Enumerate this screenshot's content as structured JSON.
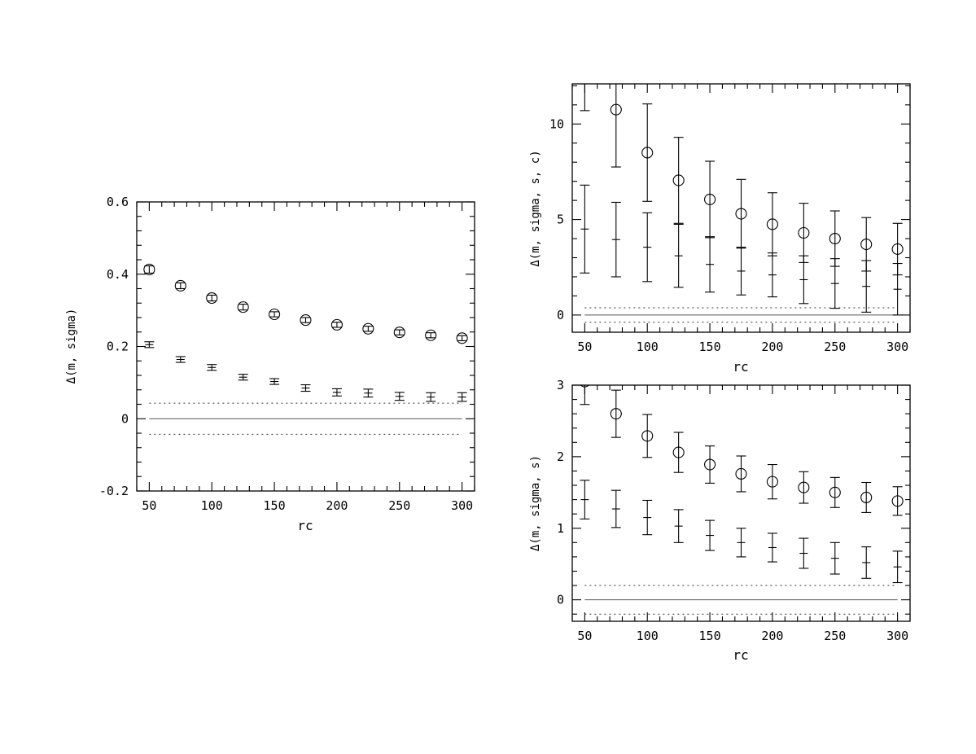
{
  "chart_data": [
    {
      "id": "left",
      "type": "scatter",
      "xlabel": "rc",
      "ylabel": "Δ(m, sigma)",
      "xlim": [
        40,
        310
      ],
      "ylim": [
        -0.2,
        0.6
      ],
      "xticks": [
        50,
        100,
        150,
        200,
        250,
        300
      ],
      "yticks": [
        -0.2,
        0,
        0.2,
        0.4,
        0.6
      ],
      "ytick_labels": [
        "-0.2",
        "0",
        "0.2",
        "0.4",
        "0.6"
      ],
      "grid": false,
      "x": [
        50,
        75,
        100,
        125,
        150,
        175,
        200,
        225,
        250,
        275,
        300
      ],
      "series": [
        {
          "marker": "circle",
          "values": [
            0.413,
            0.368,
            0.334,
            0.309,
            0.289,
            0.273,
            0.26,
            0.249,
            0.239,
            0.231,
            0.223
          ],
          "err": [
            0.01,
            0.008,
            0.008,
            0.008,
            0.007,
            0.007,
            0.007,
            0.007,
            0.007,
            0.007,
            0.007
          ]
        },
        {
          "marker": "plus",
          "values": [
            0.205,
            0.164,
            0.142,
            0.115,
            0.103,
            0.085,
            0.073,
            0.071,
            0.062,
            0.06,
            0.06
          ],
          "err": [
            0.008,
            0.008,
            0.008,
            0.008,
            0.008,
            0.009,
            0.01,
            0.011,
            0.011,
            0.012,
            0.012
          ]
        }
      ],
      "hlines": [
        {
          "y": 0,
          "style": "solid"
        },
        {
          "y": 0.043,
          "style": "dotted"
        },
        {
          "y": -0.043,
          "style": "dotted"
        }
      ]
    },
    {
      "id": "top-right",
      "type": "scatter",
      "xlabel": "rc",
      "ylabel": "Δ(m, sigma, s, c)",
      "xlim": [
        40,
        310
      ],
      "ylim": [
        -0.9,
        12.1
      ],
      "xticks": [
        50,
        100,
        150,
        200,
        250,
        300
      ],
      "yticks": [
        0,
        5,
        10
      ],
      "ytick_labels": [
        "0",
        "5",
        "10"
      ],
      "grid": false,
      "x": [
        50,
        75,
        100,
        125,
        150,
        175,
        200,
        225,
        250,
        275,
        300
      ],
      "series": [
        {
          "marker": "circle",
          "values": [
            13.0,
            10.75,
            8.5,
            7.05,
            6.05,
            5.3,
            4.75,
            4.3,
            4.0,
            3.7,
            3.45
          ],
          "err": [
            2.3,
            3.0,
            2.55,
            2.25,
            2.0,
            1.8,
            1.65,
            1.55,
            1.45,
            1.4,
            1.35
          ]
        },
        {
          "marker": "plus",
          "values": [
            4.5,
            3.95,
            3.55,
            3.1,
            2.65,
            2.3,
            2.1,
            1.85,
            1.65,
            1.5,
            1.35
          ],
          "err": [
            2.3,
            1.95,
            1.8,
            1.65,
            1.45,
            1.25,
            1.15,
            1.25,
            1.3,
            1.35,
            1.35
          ]
        }
      ],
      "hlines": [
        {
          "y": 0,
          "style": "solid"
        },
        {
          "y": 0.38,
          "style": "dotted"
        },
        {
          "y": -0.38,
          "style": "dotted"
        }
      ]
    },
    {
      "id": "bottom-right",
      "type": "scatter",
      "xlabel": "rc",
      "ylabel": "Δ(m, sigma, s)",
      "xlim": [
        40,
        310
      ],
      "ylim": [
        -0.3,
        3.0
      ],
      "xticks": [
        50,
        100,
        150,
        200,
        250,
        300
      ],
      "yticks": [
        0,
        1,
        2,
        3
      ],
      "ytick_labels": [
        "0",
        "1",
        "2",
        "3"
      ],
      "grid": false,
      "x": [
        50,
        75,
        100,
        125,
        150,
        175,
        200,
        225,
        250,
        275,
        300
      ],
      "series": [
        {
          "marker": "circle",
          "values": [
            3.05,
            2.6,
            2.29,
            2.06,
            1.89,
            1.76,
            1.65,
            1.57,
            1.5,
            1.43,
            1.38
          ],
          "err": [
            0.32,
            0.33,
            0.3,
            0.28,
            0.26,
            0.25,
            0.24,
            0.22,
            0.21,
            0.21,
            0.2
          ]
        },
        {
          "marker": "plus",
          "values": [
            1.4,
            1.27,
            1.15,
            1.03,
            0.9,
            0.8,
            0.73,
            0.65,
            0.58,
            0.52,
            0.46
          ],
          "err": [
            0.27,
            0.26,
            0.24,
            0.23,
            0.21,
            0.2,
            0.2,
            0.21,
            0.22,
            0.22,
            0.22
          ]
        }
      ],
      "hlines": [
        {
          "y": 0,
          "style": "solid"
        },
        {
          "y": 0.2,
          "style": "dotted"
        },
        {
          "y": -0.2,
          "style": "dotted"
        }
      ]
    }
  ]
}
